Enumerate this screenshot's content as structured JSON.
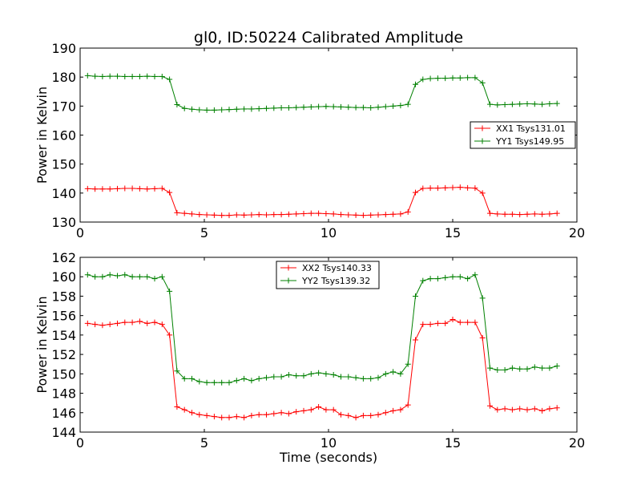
{
  "chart_data": [
    {
      "type": "line",
      "title": "gl0, ID:50224 Calibrated Amplitude",
      "xlabel": "",
      "ylabel": "Power in Kelvin",
      "xlim": [
        0,
        20
      ],
      "ylim": [
        130,
        190
      ],
      "xticks": [
        "0",
        "5",
        "10",
        "15",
        "20"
      ],
      "yticks": [
        "130",
        "140",
        "150",
        "160",
        "170",
        "180",
        "190"
      ],
      "legend_position": "center-right",
      "grid": false,
      "x": [
        0.3,
        0.6,
        0.9,
        1.2,
        1.5,
        1.8,
        2.1,
        2.4,
        2.7,
        3.0,
        3.3,
        3.6,
        3.9,
        4.2,
        4.5,
        4.8,
        5.1,
        5.4,
        5.7,
        6.0,
        6.3,
        6.6,
        6.9,
        7.2,
        7.5,
        7.8,
        8.1,
        8.4,
        8.7,
        9.0,
        9.3,
        9.6,
        9.9,
        10.2,
        10.5,
        10.8,
        11.1,
        11.4,
        11.7,
        12.0,
        12.3,
        12.6,
        12.9,
        13.2,
        13.5,
        13.8,
        14.1,
        14.4,
        14.7,
        15.0,
        15.3,
        15.6,
        15.9,
        16.2,
        16.5,
        16.8,
        17.1,
        17.4,
        17.7,
        18.0,
        18.3,
        18.6,
        18.9,
        19.2
      ],
      "series": [
        {
          "name": "XX1 Tsys131.01",
          "color": "#ff0000",
          "values": [
            141.5,
            141.4,
            141.4,
            141.4,
            141.5,
            141.6,
            141.6,
            141.5,
            141.4,
            141.5,
            141.6,
            140.2,
            133.2,
            133.0,
            132.8,
            132.6,
            132.5,
            132.4,
            132.3,
            132.3,
            132.5,
            132.4,
            132.5,
            132.6,
            132.5,
            132.6,
            132.6,
            132.7,
            132.8,
            132.9,
            133.0,
            133.0,
            132.9,
            132.8,
            132.6,
            132.5,
            132.4,
            132.3,
            132.4,
            132.5,
            132.6,
            132.7,
            132.8,
            133.5,
            140.2,
            141.6,
            141.7,
            141.7,
            141.8,
            141.9,
            142.0,
            141.8,
            141.7,
            140.0,
            133.0,
            132.8,
            132.7,
            132.7,
            132.6,
            132.7,
            132.8,
            132.7,
            132.8,
            133.0
          ]
        },
        {
          "name": "YY1 Tsys149.95",
          "color": "#008000",
          "values": [
            180.5,
            180.3,
            180.2,
            180.3,
            180.3,
            180.2,
            180.2,
            180.2,
            180.3,
            180.2,
            180.2,
            179.2,
            170.5,
            169.2,
            168.9,
            168.7,
            168.6,
            168.6,
            168.7,
            168.8,
            168.9,
            169.0,
            169.0,
            169.1,
            169.2,
            169.3,
            169.4,
            169.4,
            169.5,
            169.6,
            169.7,
            169.8,
            169.9,
            169.8,
            169.7,
            169.6,
            169.5,
            169.5,
            169.4,
            169.6,
            169.8,
            170.0,
            170.2,
            170.6,
            177.5,
            179.2,
            179.5,
            179.6,
            179.6,
            179.7,
            179.7,
            179.8,
            179.8,
            178.0,
            170.6,
            170.4,
            170.5,
            170.6,
            170.7,
            170.8,
            170.7,
            170.6,
            170.8,
            170.9
          ]
        }
      ]
    },
    {
      "type": "line",
      "title": "",
      "xlabel": "Time (seconds)",
      "ylabel": "Power in Kelvin",
      "xlim": [
        0,
        20
      ],
      "ylim": [
        144,
        162
      ],
      "xticks": [
        "0",
        "5",
        "10",
        "15",
        "20"
      ],
      "yticks": [
        "144",
        "146",
        "148",
        "150",
        "152",
        "154",
        "156",
        "158",
        "160",
        "162"
      ],
      "legend_position": "top-center",
      "grid": false,
      "x": [
        0.3,
        0.6,
        0.9,
        1.2,
        1.5,
        1.8,
        2.1,
        2.4,
        2.7,
        3.0,
        3.3,
        3.6,
        3.9,
        4.2,
        4.5,
        4.8,
        5.1,
        5.4,
        5.7,
        6.0,
        6.3,
        6.6,
        6.9,
        7.2,
        7.5,
        7.8,
        8.1,
        8.4,
        8.7,
        9.0,
        9.3,
        9.6,
        9.9,
        10.2,
        10.5,
        10.8,
        11.1,
        11.4,
        11.7,
        12.0,
        12.3,
        12.6,
        12.9,
        13.2,
        13.5,
        13.8,
        14.1,
        14.4,
        14.7,
        15.0,
        15.3,
        15.6,
        15.9,
        16.2,
        16.5,
        16.8,
        17.1,
        17.4,
        17.7,
        18.0,
        18.3,
        18.6,
        18.9,
        19.2
      ],
      "series": [
        {
          "name": "XX2 Tsys140.33",
          "color": "#ff0000",
          "values": [
            155.2,
            155.1,
            155.0,
            155.1,
            155.2,
            155.3,
            155.3,
            155.4,
            155.2,
            155.3,
            155.1,
            154.0,
            146.6,
            146.3,
            146.0,
            145.8,
            145.7,
            145.6,
            145.5,
            145.5,
            145.6,
            145.5,
            145.7,
            145.8,
            145.8,
            145.9,
            146.0,
            145.9,
            146.1,
            146.2,
            146.3,
            146.6,
            146.3,
            146.3,
            145.8,
            145.7,
            145.5,
            145.7,
            145.7,
            145.8,
            146.0,
            146.2,
            146.3,
            146.8,
            153.5,
            155.1,
            155.1,
            155.2,
            155.2,
            155.6,
            155.3,
            155.3,
            155.3,
            153.7,
            146.7,
            146.3,
            146.4,
            146.3,
            146.4,
            146.3,
            146.4,
            146.2,
            146.4,
            146.5
          ]
        },
        {
          "name": "YY2 Tsys139.32",
          "color": "#008000",
          "values": [
            160.2,
            160.0,
            160.0,
            160.2,
            160.1,
            160.2,
            160.0,
            160.0,
            160.0,
            159.8,
            160.0,
            158.5,
            150.3,
            149.5,
            149.5,
            149.2,
            149.1,
            149.1,
            149.1,
            149.1,
            149.3,
            149.5,
            149.3,
            149.5,
            149.6,
            149.7,
            149.7,
            149.9,
            149.8,
            149.8,
            150.0,
            150.1,
            150.0,
            149.9,
            149.7,
            149.7,
            149.6,
            149.5,
            149.5,
            149.6,
            150.0,
            150.2,
            150.0,
            151.0,
            158.0,
            159.6,
            159.8,
            159.8,
            159.9,
            160.0,
            160.0,
            159.8,
            160.2,
            157.8,
            150.6,
            150.4,
            150.4,
            150.6,
            150.5,
            150.5,
            150.7,
            150.6,
            150.6,
            150.8
          ]
        }
      ]
    }
  ]
}
